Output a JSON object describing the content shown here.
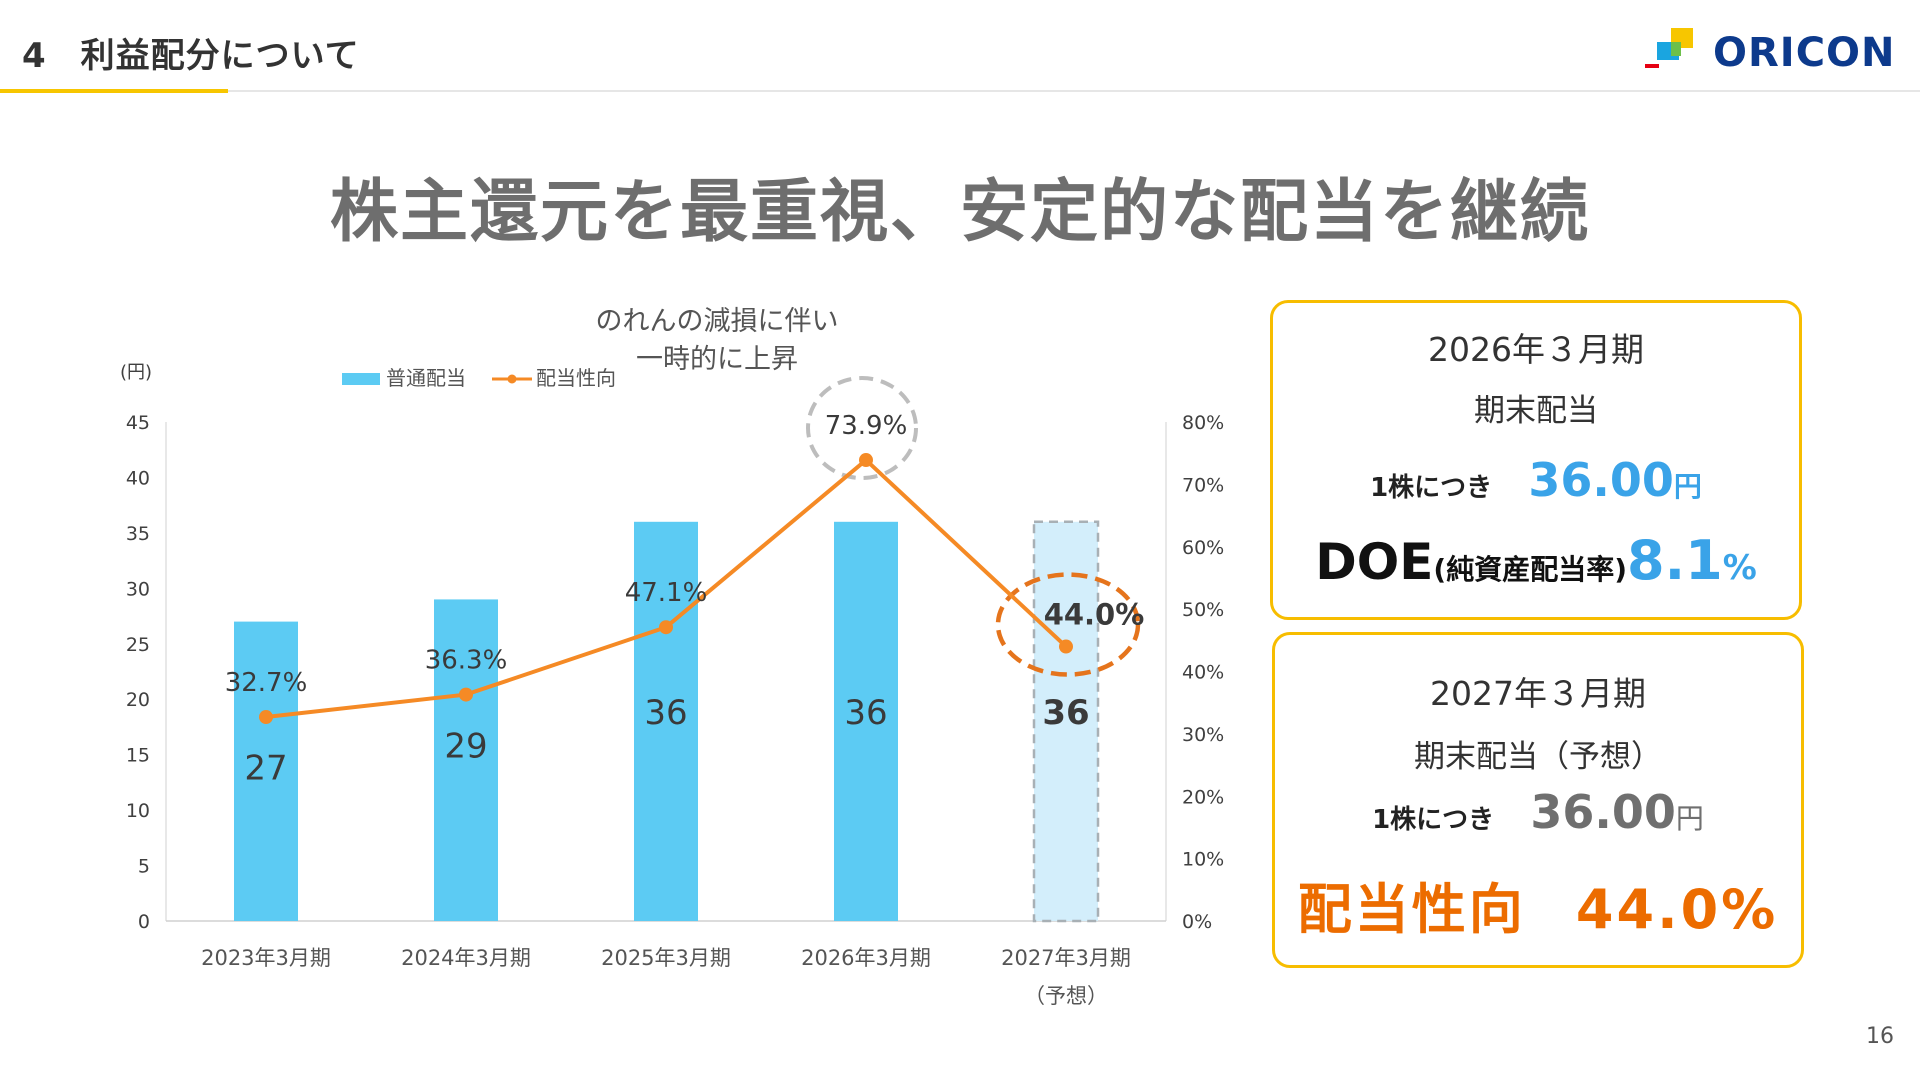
{
  "header": {
    "section_number": "4",
    "section_title": "利益配分について",
    "logo_text": "ORICON"
  },
  "main_heading": "株主還元を最重視、安定的な配当を継続",
  "chart_data": {
    "type": "bar",
    "y_unit_label": "(円)",
    "categories": [
      "2023年3月期",
      "2024年3月期",
      "2025年3月期",
      "2026年3月期",
      "2027年3月期"
    ],
    "category_sublabels": [
      "",
      "",
      "",
      "",
      "（予想）"
    ],
    "series": [
      {
        "name": "普通配当",
        "type": "bar",
        "axis": "left",
        "values": [
          27,
          29,
          36,
          36,
          36
        ],
        "value_labels": [
          "27",
          "29",
          "36",
          "36",
          "36"
        ],
        "forecast_index": 4,
        "color": "#5ccbf3",
        "forecast_color": "#d3eefb"
      },
      {
        "name": "配当性向",
        "type": "line",
        "axis": "right",
        "values": [
          32.7,
          36.3,
          47.1,
          73.9,
          44.0
        ],
        "value_labels": [
          "32.7%",
          "36.3%",
          "47.1%",
          "73.9%",
          "44.0%"
        ],
        "color": "#f58a25"
      }
    ],
    "y_left": {
      "min": 0,
      "max": 45,
      "ticks": [
        "0",
        "5",
        "10",
        "15",
        "20",
        "25",
        "30",
        "35",
        "40",
        "45"
      ]
    },
    "y_right": {
      "min": 0,
      "max": 80,
      "ticks": [
        "0%",
        "10%",
        "20%",
        "30%",
        "40%",
        "50%",
        "60%",
        "70%",
        "80%"
      ]
    },
    "annotation": {
      "line1": "のれんの減損に伴い",
      "line2": "一時的に上昇"
    },
    "legend_position": "top",
    "grid": false
  },
  "card_current": {
    "period": "2026年３月期",
    "subtitle": "期末配当",
    "per_share_label": "1株につき",
    "amount": "36.00",
    "amount_unit": "円",
    "doe_label": "DOE",
    "doe_paren": "(純資産配当率)",
    "doe_value": "8.1",
    "doe_unit": "%"
  },
  "card_forecast": {
    "period": "2027年３月期",
    "subtitle": "期末配当（予想）",
    "per_share_label": "1株につき",
    "amount": "36.00",
    "amount_unit": "円",
    "payout_label": "配当性向",
    "payout_value": "44.0%"
  },
  "page_number": "16",
  "colors": {
    "accent_yellow": "#f7c600",
    "bar_blue": "#5ccbf3",
    "line_orange": "#f58a25",
    "highlight_blue": "#3aa3e8",
    "highlight_orange": "#ec6c00"
  }
}
